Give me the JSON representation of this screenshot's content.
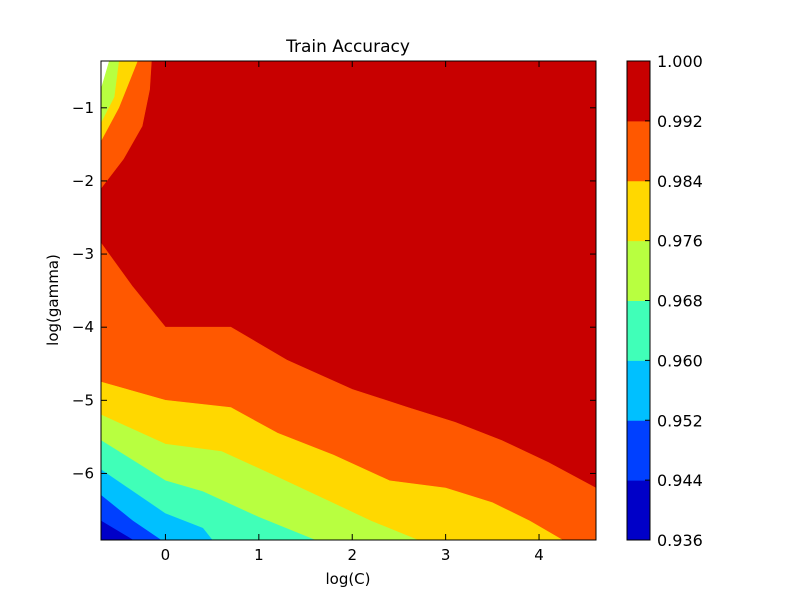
{
  "chart_data": {
    "type": "heatmap",
    "subtype": "filled-contour",
    "title": "Train Accuracy",
    "xlabel": "log(C)",
    "ylabel": "log(gamma)",
    "xlim": [
      -0.69,
      4.61
    ],
    "ylim": [
      -6.91,
      -0.36
    ],
    "xticks": [
      0,
      1,
      2,
      3,
      4
    ],
    "xtick_labels": [
      "0",
      "1",
      "2",
      "3",
      "4"
    ],
    "yticks": [
      -1,
      -2,
      -3,
      -4,
      -5,
      -6
    ],
    "ytick_labels": [
      "−1",
      "−2",
      "−3",
      "−4",
      "−5",
      "−6"
    ],
    "grid": false,
    "colorbar": {
      "levels": [
        0.936,
        0.944,
        0.952,
        0.96,
        0.968,
        0.976,
        0.984,
        0.992,
        1.0
      ],
      "tick_labels": [
        "0.936",
        "0.944",
        "0.952",
        "0.960",
        "0.968",
        "0.976",
        "0.984",
        "0.992",
        "1.000"
      ],
      "colors": [
        "#0000c8",
        "#0040ff",
        "#00c0ff",
        "#40ffb8",
        "#b8ff40",
        "#ffd800",
        "#ff5800",
        "#c80000"
      ],
      "placement": "right"
    },
    "contour_bands": [
      {
        "min": 0.992,
        "max": 1.0,
        "color": "#c80000",
        "region": [
          [
            -0.15,
            -0.36
          ],
          [
            4.61,
            -0.36
          ],
          [
            4.61,
            -6.2
          ],
          [
            4.1,
            -5.85
          ],
          [
            3.6,
            -5.55
          ],
          [
            3.1,
            -5.3
          ],
          [
            2.6,
            -5.1
          ],
          [
            2.0,
            -4.85
          ],
          [
            1.3,
            -4.45
          ],
          [
            0.7,
            -4.0
          ],
          [
            0.0,
            -4.0
          ],
          [
            -0.35,
            -3.45
          ],
          [
            -0.69,
            -2.85
          ],
          [
            -0.69,
            -2.1
          ],
          [
            -0.45,
            -1.7
          ],
          [
            -0.25,
            -1.25
          ],
          [
            -0.17,
            -0.75
          ]
        ]
      },
      {
        "min": 0.984,
        "max": 0.992,
        "color": "#ff5800",
        "region": [
          [
            -0.3,
            -0.36
          ],
          [
            -0.15,
            -0.36
          ],
          [
            -0.17,
            -0.75
          ],
          [
            -0.25,
            -1.25
          ],
          [
            -0.45,
            -1.7
          ],
          [
            -0.69,
            -2.1
          ],
          [
            -0.69,
            -2.85
          ],
          [
            -0.35,
            -3.45
          ],
          [
            0.0,
            -4.0
          ],
          [
            0.7,
            -4.0
          ],
          [
            1.3,
            -4.45
          ],
          [
            2.0,
            -4.85
          ],
          [
            2.6,
            -5.1
          ],
          [
            3.1,
            -5.3
          ],
          [
            3.6,
            -5.55
          ],
          [
            4.1,
            -5.85
          ],
          [
            4.61,
            -6.2
          ],
          [
            4.61,
            -6.91
          ],
          [
            4.25,
            -6.91
          ],
          [
            3.9,
            -6.65
          ],
          [
            3.5,
            -6.4
          ],
          [
            3.0,
            -6.2
          ],
          [
            2.4,
            -6.1
          ],
          [
            1.8,
            -5.75
          ],
          [
            1.2,
            -5.45
          ],
          [
            0.7,
            -5.1
          ],
          [
            0.0,
            -5.0
          ],
          [
            -0.69,
            -4.75
          ],
          [
            -0.69,
            -1.45
          ],
          [
            -0.5,
            -1.0
          ]
        ]
      },
      {
        "min": 0.976,
        "max": 0.984,
        "color": "#ffd800",
        "region": [
          [
            -0.5,
            -0.36
          ],
          [
            -0.3,
            -0.36
          ],
          [
            -0.5,
            -1.0
          ],
          [
            -0.69,
            -1.45
          ],
          [
            -0.69,
            -4.75
          ],
          [
            0.0,
            -5.0
          ],
          [
            0.7,
            -5.1
          ],
          [
            1.2,
            -5.45
          ],
          [
            1.8,
            -5.75
          ],
          [
            2.4,
            -6.1
          ],
          [
            3.0,
            -6.2
          ],
          [
            3.5,
            -6.4
          ],
          [
            3.9,
            -6.65
          ],
          [
            4.25,
            -6.91
          ],
          [
            2.7,
            -6.91
          ],
          [
            2.2,
            -6.65
          ],
          [
            1.7,
            -6.35
          ],
          [
            1.2,
            -6.05
          ],
          [
            0.6,
            -5.7
          ],
          [
            0.0,
            -5.6
          ],
          [
            -0.69,
            -5.2
          ],
          [
            -0.69,
            -1.2
          ],
          [
            -0.55,
            -0.85
          ]
        ]
      },
      {
        "min": 0.968,
        "max": 0.976,
        "color": "#b8ff40",
        "region": [
          [
            -0.6,
            -0.36
          ],
          [
            -0.5,
            -0.36
          ],
          [
            -0.55,
            -0.85
          ],
          [
            -0.69,
            -1.2
          ],
          [
            -0.69,
            -5.2
          ],
          [
            0.0,
            -5.6
          ],
          [
            0.6,
            -5.7
          ],
          [
            1.2,
            -6.05
          ],
          [
            1.7,
            -6.35
          ],
          [
            2.2,
            -6.65
          ],
          [
            2.7,
            -6.91
          ],
          [
            1.6,
            -6.91
          ],
          [
            1.0,
            -6.6
          ],
          [
            0.4,
            -6.25
          ],
          [
            0.0,
            -6.1
          ],
          [
            -0.69,
            -5.55
          ],
          [
            -0.69,
            -0.75
          ]
        ]
      },
      {
        "min": 0.96,
        "max": 0.968,
        "color": "#40ffb8",
        "region": [
          [
            -0.69,
            -5.55
          ],
          [
            0.0,
            -6.1
          ],
          [
            0.4,
            -6.25
          ],
          [
            1.0,
            -6.6
          ],
          [
            1.6,
            -6.91
          ],
          [
            0.5,
            -6.91
          ],
          [
            0.4,
            -6.75
          ],
          [
            0.0,
            -6.55
          ],
          [
            -0.69,
            -5.95
          ]
        ]
      },
      {
        "min": 0.952,
        "max": 0.96,
        "color": "#00c0ff",
        "region": [
          [
            -0.69,
            -5.95
          ],
          [
            0.0,
            -6.55
          ],
          [
            0.4,
            -6.75
          ],
          [
            0.5,
            -6.91
          ],
          [
            -0.05,
            -6.91
          ],
          [
            -0.35,
            -6.65
          ],
          [
            -0.69,
            -6.3
          ]
        ]
      },
      {
        "min": 0.944,
        "max": 0.952,
        "color": "#0040ff",
        "region": [
          [
            -0.69,
            -6.3
          ],
          [
            -0.35,
            -6.65
          ],
          [
            -0.05,
            -6.91
          ],
          [
            -0.35,
            -6.91
          ],
          [
            -0.69,
            -6.65
          ]
        ]
      },
      {
        "min": 0.936,
        "max": 0.944,
        "color": "#0000c8",
        "region": [
          [
            -0.69,
            -6.65
          ],
          [
            -0.35,
            -6.91
          ],
          [
            -0.69,
            -6.91
          ]
        ]
      }
    ]
  }
}
